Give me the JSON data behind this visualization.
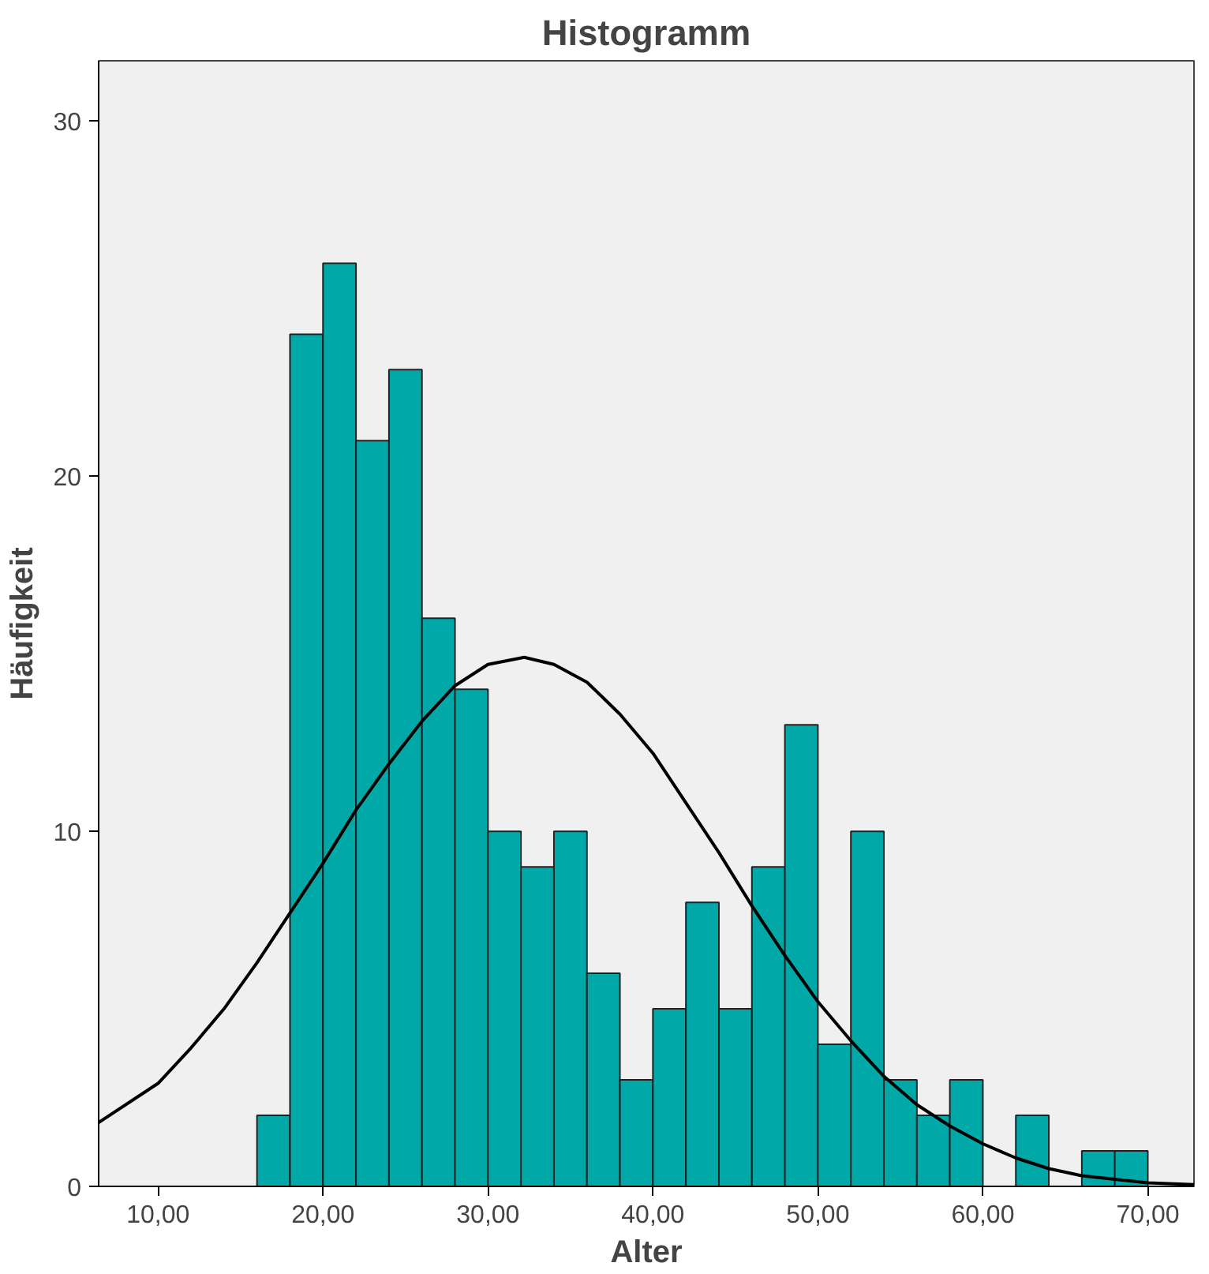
{
  "chart_data": {
    "type": "histogram",
    "title": "Histogramm",
    "xlabel": "Alter",
    "ylabel": "Häufigkeit",
    "bins": [
      16,
      18,
      20,
      22,
      24,
      26,
      28,
      30,
      32,
      34,
      36,
      38,
      40,
      42,
      44,
      46,
      48,
      50,
      52,
      54,
      56,
      58,
      60,
      62,
      64,
      66,
      68,
      70
    ],
    "values": [
      2,
      24,
      26,
      21,
      23,
      16,
      14,
      10,
      9,
      10,
      6,
      3,
      5,
      8,
      5,
      9,
      13,
      4,
      10,
      3,
      2,
      3,
      0,
      2,
      0,
      1,
      1
    ],
    "color": "#00a8a8",
    "series": [
      {
        "type": "line",
        "color": "#000000",
        "x": [
          6.4,
          10,
          12,
          14,
          16,
          18,
          20,
          22,
          24,
          26,
          28,
          30,
          32.2,
          34,
          36,
          38,
          40,
          42,
          44,
          46,
          48,
          50,
          52,
          54,
          56,
          58,
          60,
          62,
          64,
          66,
          68,
          70,
          72.8
        ],
        "values": [
          1.8,
          2.9,
          3.9,
          5.0,
          6.3,
          7.7,
          9.1,
          10.6,
          11.9,
          13.1,
          14.1,
          14.7,
          14.9,
          14.7,
          14.2,
          13.3,
          12.2,
          10.8,
          9.4,
          7.9,
          6.5,
          5.2,
          4.1,
          3.1,
          2.3,
          1.7,
          1.2,
          0.8,
          0.5,
          0.3,
          0.2,
          0.1,
          0.05
        ]
      }
    ],
    "xlim": [
      6.4,
      72.8
    ],
    "ylim": [
      0,
      31.7
    ],
    "xticks": [
      {
        "value": 10,
        "label": "10,00"
      },
      {
        "value": 20,
        "label": "20,00"
      },
      {
        "value": 30,
        "label": "30,00"
      },
      {
        "value": 40,
        "label": "40,00"
      },
      {
        "value": 50,
        "label": "50,00"
      },
      {
        "value": 60,
        "label": "60,00"
      },
      {
        "value": 70,
        "label": "70,00"
      }
    ],
    "yticks": [
      0,
      10,
      20,
      30
    ],
    "grid": false
  }
}
